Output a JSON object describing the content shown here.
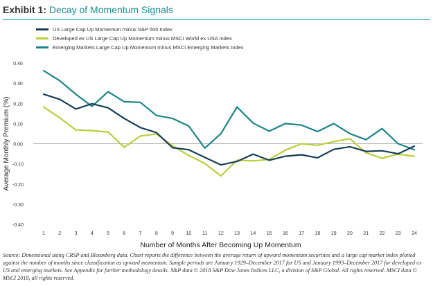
{
  "header": {
    "exhibit_label": "Exhibit 1:",
    "title": "Decay of Momentum Signals"
  },
  "source_note": "Source: Dimensional using CRSP and Bloomberg data. Chart reports the difference between the average return of upward momentum securities and a large cap market index plotted against the number of months since classification as upward momentum. Sample periods are January 1929–December 2017 for US and January 1993–December 2017 for developed ex US and emerging markets. See Appendix for further methodology details. S&P data © 2018 S&P Dow Jones Indices LLC, a division of S&P Global. All rights reserved. MSCI data © MSCI 2018, all rights reserved.",
  "chart_data": {
    "type": "line",
    "title": "Decay of Momentum Signals",
    "xlabel": "Number of Months After Becoming Up Momentum",
    "ylabel": "Average Monthly Premium (%)",
    "x": [
      1,
      2,
      3,
      4,
      5,
      6,
      7,
      8,
      9,
      10,
      11,
      12,
      13,
      14,
      15,
      16,
      17,
      18,
      19,
      20,
      21,
      22,
      23,
      24
    ],
    "x_tick_labels": [
      "1",
      "2",
      "3",
      "4",
      "5",
      "6",
      "7",
      "8",
      "9",
      "10",
      "11",
      "12",
      "13",
      "14",
      "15",
      "16",
      "17",
      "18",
      "19",
      "20",
      "21",
      "22",
      "23",
      "24"
    ],
    "ylim": [
      -0.4,
      0.4
    ],
    "y_ticks": [
      0.4,
      0.3,
      0.2,
      0.1,
      0.0,
      -0.1,
      -0.2,
      -0.3,
      -0.4
    ],
    "y_tick_labels": [
      "0.40",
      "0.30",
      "0.20",
      "0.10",
      "0.00",
      "-0.10",
      "-0.20",
      "-0.30",
      "-0.40"
    ],
    "grid": false,
    "legend_position": "top-left",
    "series": [
      {
        "name": "US Large Cap Up Momentum minus S&P 500 Index",
        "color": "#173d55",
        "values": [
          0.245,
          0.22,
          0.172,
          0.198,
          0.178,
          0.125,
          0.08,
          0.055,
          -0.02,
          -0.03,
          -0.068,
          -0.105,
          -0.088,
          -0.052,
          -0.082,
          -0.062,
          -0.055,
          -0.07,
          -0.028,
          -0.015,
          -0.038,
          -0.035,
          -0.05,
          -0.012
        ]
      },
      {
        "name": "Developed ex US Large Cap Up Momentum minus MSCI World ex USA Index",
        "color": "#b8cf3c",
        "values": [
          0.182,
          0.128,
          0.068,
          0.065,
          0.058,
          -0.018,
          0.038,
          0.048,
          -0.01,
          -0.058,
          -0.098,
          -0.16,
          -0.082,
          -0.085,
          -0.078,
          -0.032,
          0.0,
          -0.008,
          0.01,
          0.025,
          -0.045,
          -0.072,
          -0.052,
          -0.062
        ]
      },
      {
        "name": "Emerging Markets Large Cap Up Momentum minus MSCI Emerging Markets Index",
        "color": "#1a8488",
        "values": [
          0.362,
          0.312,
          0.245,
          0.185,
          0.258,
          0.208,
          0.205,
          0.14,
          0.125,
          0.088,
          -0.022,
          0.05,
          0.182,
          0.102,
          0.062,
          0.1,
          0.092,
          0.06,
          0.1,
          0.05,
          0.02,
          0.075,
          0.0,
          -0.03
        ]
      }
    ]
  }
}
